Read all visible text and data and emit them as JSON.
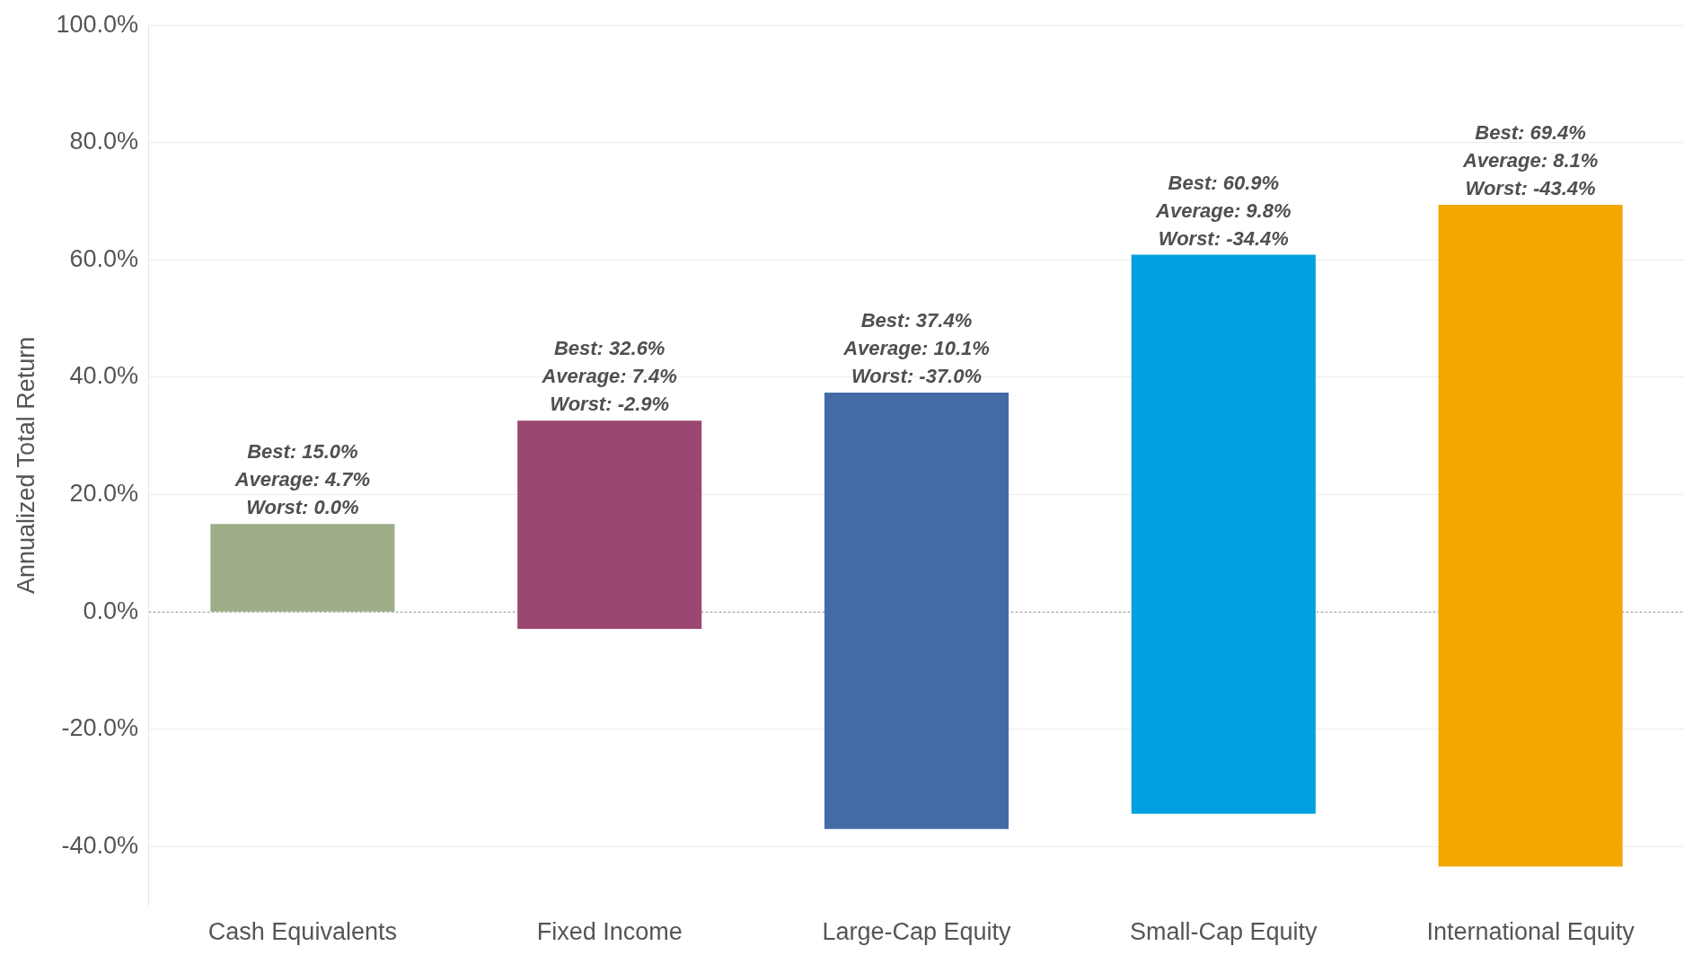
{
  "chart_data": {
    "type": "bar",
    "ylabel": "Annualized Total Return",
    "categories": [
      "Cash Equivalents",
      "Fixed Income",
      "Large-Cap Equity",
      "Small-Cap Equity",
      "International Equity"
    ],
    "base": [
      0.0,
      -2.9,
      -37.0,
      -34.4,
      -43.4
    ],
    "values": [
      15.0,
      35.5,
      74.4,
      95.3,
      112.8
    ],
    "colors": [
      "#9cad88",
      "#9c4772",
      "#446ba6",
      "#009fdf",
      "#f3a500"
    ],
    "annotations": [
      {
        "text": "Best: 15.0%\nAverage: 4.7%\nWorst: 0.0%",
        "x": "Cash Equivalents",
        "y": 15.0
      },
      {
        "text": "Best: 32.6%\nAverage: 7.4%\nWorst: -2.9%",
        "x": "Fixed Income",
        "y": 32.6
      },
      {
        "text": "Best: 37.4%\nAverage: 10.1%\nWorst: -37.0%",
        "x": "Large-Cap Equity",
        "y": 37.4
      },
      {
        "text": "Best: 60.9%\nAverage: 9.8%\nWorst: -34.4%",
        "x": "Small-Cap Equity",
        "y": 60.9
      },
      {
        "text": "Best: 69.4%\nAverage: 8.1%\nWorst: -43.4%",
        "x": "International Equity",
        "y": 69.4
      }
    ],
    "ylim": [
      -50,
      100
    ],
    "yticks": [
      {
        "value": -40,
        "label": "-40.0%"
      },
      {
        "value": -20,
        "label": "-20.0%"
      },
      {
        "value": 0,
        "label": "0.0%"
      },
      {
        "value": 20,
        "label": "20.0%"
      },
      {
        "value": 40,
        "label": "40.0%"
      },
      {
        "value": 60,
        "label": "60.0%"
      },
      {
        "value": 80,
        "label": "80.0%"
      },
      {
        "value": 100,
        "label": "100.0%"
      }
    ],
    "ref_lines": [
      {
        "axis": "y",
        "value": 0,
        "color": "#aaaaaa",
        "line_style": "dotted"
      }
    ],
    "grid": "y",
    "legend": false
  }
}
